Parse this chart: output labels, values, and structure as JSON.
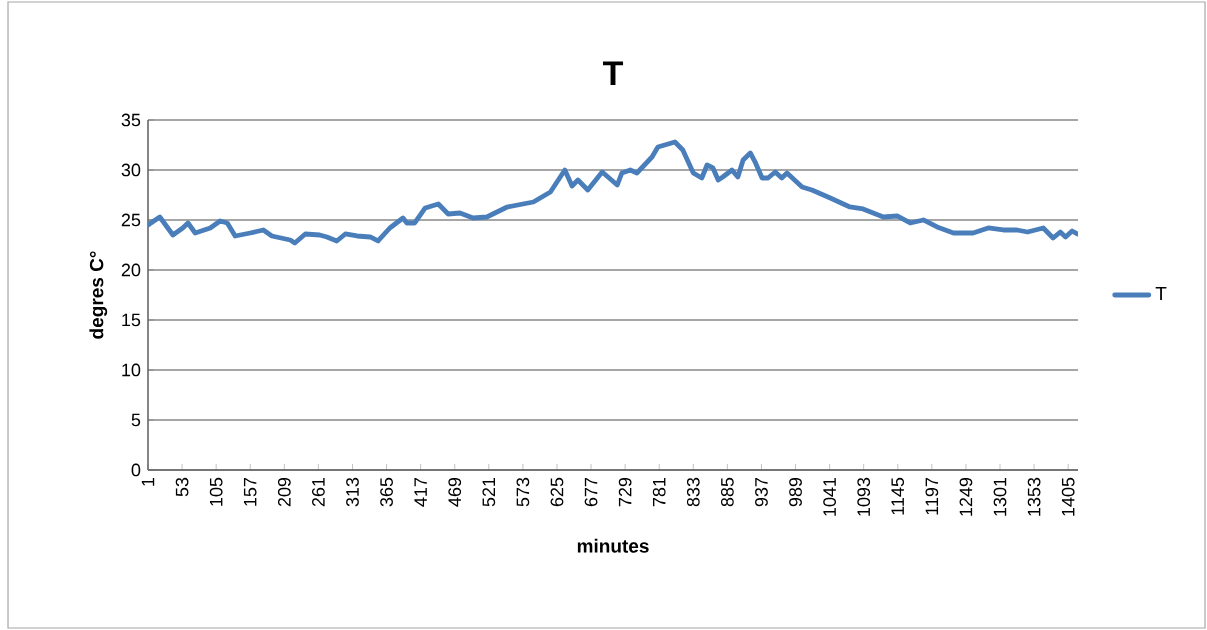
{
  "chart_data": {
    "type": "line",
    "title": "T",
    "xlabel": "minutes",
    "ylabel": "degres C°",
    "xlim": [
      1,
      1420
    ],
    "xticks": [
      1,
      53,
      105,
      157,
      209,
      261,
      313,
      365,
      417,
      469,
      521,
      573,
      625,
      677,
      729,
      781,
      833,
      885,
      937,
      989,
      1041,
      1093,
      1145,
      1197,
      1249,
      1301,
      1353,
      1405
    ],
    "ylim": [
      0,
      35
    ],
    "yticks": [
      0,
      5,
      10,
      15,
      20,
      25,
      30,
      35
    ],
    "grid": "y",
    "legend": "right",
    "marker": "none",
    "line_style": "solid",
    "series": [
      {
        "name": "T",
        "color": "#4a7ebb",
        "x": [
          1,
          19,
          39,
          54,
          62,
          73,
          96,
          111,
          122,
          134,
          157,
          177,
          190,
          218,
          225,
          241,
          263,
          274,
          289,
          302,
          320,
          340,
          352,
          370,
          390,
          396,
          408,
          424,
          444,
          459,
          477,
          497,
          518,
          549,
          589,
          615,
          637,
          648,
          657,
          672,
          694,
          717,
          724,
          737,
          747,
          770,
          779,
          805,
          817,
          833,
          846,
          854,
          863,
          871,
          878,
          892,
          901,
          909,
          920,
          928,
          938,
          947,
          958,
          968,
          976,
          999,
          1014,
          1042,
          1072,
          1092,
          1123,
          1144,
          1164,
          1184,
          1205,
          1230,
          1260,
          1283,
          1306,
          1327,
          1343,
          1367,
          1382,
          1393,
          1401,
          1411,
          1419
        ],
        "values": [
          24.5,
          25.3,
          23.5,
          24.2,
          24.7,
          23.7,
          24.2,
          24.9,
          24.7,
          23.4,
          23.7,
          24.0,
          23.4,
          23.0,
          22.7,
          23.6,
          23.5,
          23.3,
          22.9,
          23.6,
          23.4,
          23.3,
          22.9,
          24.2,
          25.2,
          24.7,
          24.7,
          26.2,
          26.6,
          25.6,
          25.7,
          25.2,
          25.3,
          26.3,
          26.8,
          27.8,
          30.0,
          28.4,
          29.0,
          28.0,
          29.8,
          28.5,
          29.7,
          30.0,
          29.7,
          31.3,
          32.3,
          32.8,
          32.0,
          29.7,
          29.2,
          30.5,
          30.2,
          29.0,
          29.3,
          30.0,
          29.3,
          31.0,
          31.7,
          30.7,
          29.2,
          29.2,
          29.8,
          29.2,
          29.7,
          28.3,
          28.0,
          27.2,
          26.3,
          26.1,
          25.3,
          25.4,
          24.7,
          25.0,
          24.3,
          23.7,
          23.7,
          24.2,
          24.0,
          24.0,
          23.8,
          24.2,
          23.2,
          23.8,
          23.3,
          23.9,
          23.6
        ]
      }
    ]
  }
}
